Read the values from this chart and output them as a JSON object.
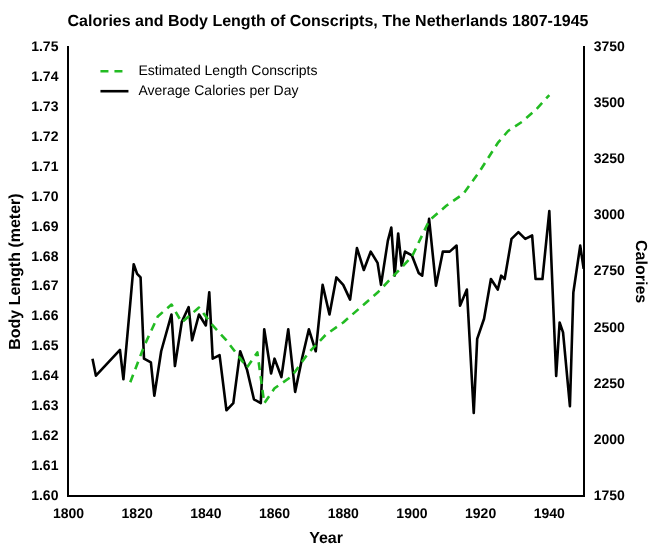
{
  "chart_data": {
    "type": "line",
    "title": "Calories and Body Length of Conscripts, The Netherlands 1807-1945",
    "xlabel": "Year",
    "ylabel": "Body Length (meter)",
    "y2label": "Calories",
    "xlim": [
      1800,
      1950
    ],
    "xticks": [
      1800,
      1820,
      1840,
      1860,
      1880,
      1900,
      1920,
      1940
    ],
    "ylim": [
      1.6,
      1.75
    ],
    "yticks": [
      {
        "value": 1.6,
        "label": "1.60"
      },
      1.61,
      1.62,
      1.63,
      1.64,
      1.65,
      1.66,
      1.67,
      1.68,
      1.69,
      {
        "value": 1.7,
        "label": "1.70"
      },
      1.71,
      1.72,
      1.73,
      1.74,
      1.75
    ],
    "y2lim": [
      1750,
      3750
    ],
    "y2ticks": [
      1750,
      2000,
      2250,
      2500,
      2750,
      3000,
      3250,
      3500,
      3750
    ],
    "grid": false,
    "legend": "top left",
    "marker": "none",
    "series": [
      {
        "name": "Estimated Length Conscripts",
        "color": "#22bb22",
        "line_style": "dashed",
        "x": [
          1818,
          1822,
          1826,
          1830,
          1833,
          1838,
          1842,
          1846,
          1850,
          1852,
          1855,
          1857,
          1860,
          1865,
          1870,
          1875,
          1880,
          1885,
          1890,
          1895,
          1900,
          1905,
          1910,
          1915,
          1920,
          1925,
          1928,
          1932,
          1936,
          1940
        ],
        "values": [
          1.638,
          1.65,
          1.66,
          1.664,
          1.658,
          1.663,
          1.657,
          1.652,
          1.646,
          1.643,
          1.648,
          1.631,
          1.636,
          1.64,
          1.648,
          1.654,
          1.658,
          1.663,
          1.668,
          1.674,
          1.68,
          1.692,
          1.697,
          1.701,
          1.709,
          1.718,
          1.722,
          1.725,
          1.729,
          1.734
        ]
      },
      {
        "name": "Average Calories per Day",
        "color": "#000000",
        "line_style": "solid",
        "axis": "y2",
        "x": [
          1807,
          1808,
          1815,
          1816,
          1818,
          1819,
          1820,
          1821,
          1822,
          1824,
          1825,
          1827,
          1830,
          1831,
          1833,
          1835,
          1836,
          1838,
          1840,
          1841,
          1842,
          1844,
          1846,
          1848,
          1850,
          1852,
          1854,
          1856,
          1857,
          1859,
          1860,
          1862,
          1864,
          1866,
          1868,
          1870,
          1872,
          1874,
          1876,
          1878,
          1880,
          1882,
          1884,
          1886,
          1888,
          1890,
          1891,
          1893,
          1894,
          1895,
          1896,
          1897,
          1898,
          1900,
          1902,
          1903,
          1905,
          1907,
          1909,
          1911,
          1913,
          1914,
          1916,
          1918,
          1919,
          1921,
          1923,
          1925,
          1926,
          1927,
          1929,
          1931,
          1933,
          1935,
          1936,
          1938,
          1940,
          1942,
          1943,
          1944,
          1946,
          1947,
          1949,
          1950
        ],
        "values": [
          2362,
          2286,
          2401,
          2270,
          2609,
          2783,
          2740,
          2724,
          2362,
          2345,
          2197,
          2395,
          2559,
          2329,
          2526,
          2592,
          2444,
          2559,
          2510,
          2658,
          2362,
          2378,
          2132,
          2164,
          2395,
          2312,
          2181,
          2164,
          2493,
          2296,
          2362,
          2280,
          2493,
          2214,
          2362,
          2493,
          2395,
          2691,
          2559,
          2724,
          2691,
          2625,
          2855,
          2757,
          2839,
          2789,
          2691,
          2888,
          2946,
          2732,
          2920,
          2777,
          2839,
          2822,
          2743,
          2732,
          2985,
          2687,
          2839,
          2839,
          2866,
          2598,
          2670,
          2120,
          2450,
          2540,
          2717,
          2670,
          2732,
          2717,
          2896,
          2926,
          2896,
          2911,
          2717,
          2717,
          3020,
          2285,
          2523,
          2479,
          2150,
          2657,
          2866,
          2762
        ]
      }
    ]
  }
}
